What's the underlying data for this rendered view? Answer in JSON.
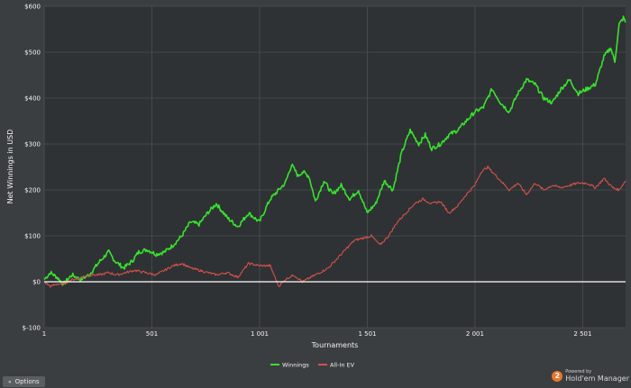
{
  "chart_data": {
    "type": "line",
    "xlabel": "Tournaments",
    "ylabel": "Net Winnings in USD",
    "xlim": [
      1,
      2700
    ],
    "ylim": [
      -100,
      600
    ],
    "x_ticks": [
      1,
      501,
      1001,
      1501,
      2001,
      2501
    ],
    "x_tick_labels": [
      "1",
      "501",
      "1 001",
      "1 501",
      "2 001",
      "2 501"
    ],
    "y_ticks": [
      -100,
      0,
      100,
      200,
      300,
      400,
      500,
      600
    ],
    "y_tick_labels": [
      "$-100",
      "$0",
      "$100",
      "$200",
      "$300",
      "$400",
      "$500",
      "$600"
    ],
    "grid": true,
    "zero_line": 0,
    "legend_position": "bottom-center",
    "series": [
      {
        "name": "Winnings",
        "color": "#37e32e",
        "x": [
          1,
          30,
          60,
          90,
          130,
          170,
          210,
          260,
          300,
          330,
          370,
          410,
          440,
          480,
          520,
          560,
          600,
          640,
          680,
          720,
          760,
          800,
          850,
          900,
          950,
          1000,
          1050,
          1080,
          1120,
          1150,
          1180,
          1200,
          1230,
          1260,
          1300,
          1340,
          1380,
          1420,
          1460,
          1500,
          1540,
          1580,
          1620,
          1660,
          1700,
          1740,
          1770,
          1800,
          1840,
          1880,
          1920,
          1960,
          2000,
          2040,
          2080,
          2120,
          2160,
          2200,
          2240,
          2280,
          2320,
          2360,
          2400,
          2440,
          2480,
          2520,
          2560,
          2600,
          2630,
          2650,
          2670,
          2690,
          2700
        ],
        "values": [
          5,
          20,
          10,
          -5,
          15,
          5,
          15,
          45,
          65,
          45,
          30,
          45,
          65,
          70,
          60,
          65,
          80,
          100,
          130,
          125,
          150,
          170,
          140,
          120,
          150,
          130,
          180,
          195,
          215,
          255,
          230,
          240,
          230,
          175,
          220,
          190,
          210,
          180,
          200,
          150,
          170,
          220,
          200,
          280,
          330,
          300,
          320,
          290,
          300,
          320,
          330,
          350,
          370,
          380,
          420,
          390,
          370,
          410,
          440,
          430,
          400,
          390,
          420,
          440,
          410,
          420,
          430,
          490,
          510,
          480,
          560,
          575,
          565
        ]
      },
      {
        "name": "All-In EV",
        "color": "#d3514c",
        "x": [
          1,
          30,
          60,
          90,
          130,
          170,
          210,
          260,
          300,
          340,
          380,
          420,
          470,
          520,
          560,
          600,
          640,
          680,
          720,
          760,
          800,
          850,
          900,
          950,
          1000,
          1050,
          1090,
          1120,
          1160,
          1200,
          1240,
          1280,
          1320,
          1360,
          1400,
          1440,
          1480,
          1520,
          1560,
          1600,
          1640,
          1680,
          1720,
          1760,
          1800,
          1840,
          1880,
          1920,
          1960,
          2000,
          2030,
          2060,
          2090,
          2120,
          2160,
          2200,
          2240,
          2280,
          2320,
          2360,
          2400,
          2440,
          2480,
          2520,
          2560,
          2600,
          2640,
          2670,
          2700
        ],
        "values": [
          0,
          -10,
          -5,
          -5,
          5,
          8,
          15,
          15,
          20,
          15,
          20,
          25,
          20,
          15,
          25,
          35,
          40,
          30,
          25,
          20,
          15,
          20,
          10,
          40,
          35,
          35,
          -10,
          5,
          15,
          0,
          10,
          20,
          30,
          50,
          70,
          90,
          95,
          100,
          80,
          100,
          130,
          150,
          170,
          180,
          170,
          175,
          150,
          165,
          190,
          210,
          240,
          250,
          235,
          220,
          200,
          215,
          190,
          215,
          200,
          210,
          205,
          210,
          215,
          215,
          205,
          225,
          205,
          200,
          220
        ]
      }
    ]
  },
  "ui": {
    "options_label": "Options",
    "brand_powered": "Powered by",
    "brand_name": "Hold'em Manager",
    "brand_badge": "2"
  }
}
